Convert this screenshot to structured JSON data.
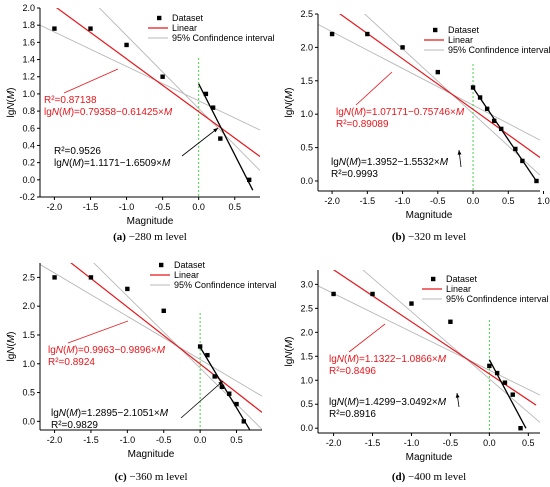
{
  "chart_data": [
    {
      "type": "scatter",
      "caption": "(a) −280 m level",
      "caption_letter": "(a)",
      "caption_text": "−280 m level",
      "xlabel": "Magnitude",
      "ylabel": "lgN(M)",
      "xlim": [
        -2.2,
        0.85
      ],
      "ylim": [
        -0.2,
        2.0
      ],
      "xticks": [
        -2.0,
        -1.5,
        -1.0,
        -0.5,
        0.0,
        0.5
      ],
      "xtick_labels": [
        "-2.0",
        "-1.5",
        "-1.0",
        "-0.5",
        "0.0",
        "0.5"
      ],
      "yticks": [
        -0.2,
        0.0,
        0.2,
        0.4,
        0.6,
        0.8,
        1.0,
        1.2,
        1.4,
        1.6,
        1.8,
        2.0
      ],
      "ytick_labels": [
        "-0.2",
        "0.0",
        "0.2",
        "0.4",
        "0.6",
        "0.8",
        "1.0",
        "1.2",
        "1.4",
        "1.6",
        "1.8",
        "2.0"
      ],
      "series": [
        {
          "name": "Dataset",
          "x": [
            -2.0,
            -1.5,
            -1.0,
            -0.5,
            0.1,
            0.2,
            0.3,
            0.7
          ],
          "y": [
            1.76,
            1.76,
            1.57,
            1.2,
            1.0,
            0.84,
            0.48,
            0.0
          ]
        }
      ],
      "fits": {
        "linear": {
          "intercept": 0.79358,
          "slope": -0.61425,
          "x_range": [
            -2.2,
            0.85
          ],
          "equation": "lgN(M)=0.79358−0.61425×M",
          "r2": "R²=0.87138"
        },
        "segment": {
          "intercept": 1.1171,
          "slope": -1.6509,
          "x_range": [
            0.0,
            0.75
          ],
          "equation": "lgN(M)=1.1171−1.6509×M",
          "r2": "R²=0.9526"
        },
        "confidence_band": {
          "pivot": [
            -0.2,
            1.0
          ],
          "slopes": [
            -0.4,
            -0.85
          ]
        },
        "vertical_guide_x": 0.0
      },
      "legend": {
        "entries": [
          "Dataset",
          "Linear",
          "95% Confindence interval"
        ],
        "placement": "top-right"
      }
    },
    {
      "type": "scatter",
      "caption": "(b) −320 m level",
      "caption_letter": "(b)",
      "caption_text": "−320 m level",
      "xlabel": "Magnitude",
      "ylabel": "lgN(M)",
      "xlim": [
        -2.2,
        0.95
      ],
      "ylim": [
        -0.15,
        2.5
      ],
      "xticks": [
        -2.0,
        -1.5,
        -1.0,
        -0.5,
        0.0,
        0.5,
        1.0
      ],
      "xtick_labels": [
        "-2.0",
        "-1.5",
        "-1.0",
        "-0.5",
        "0.0",
        "0.5",
        "1.0"
      ],
      "yticks": [
        0.0,
        0.5,
        1.0,
        1.5,
        2.0,
        2.5
      ],
      "ytick_labels": [
        "0.0",
        "0.5",
        "1.0",
        "1.5",
        "2.0",
        "2.5"
      ],
      "series": [
        {
          "name": "Dataset",
          "x": [
            -2.0,
            -1.5,
            -1.0,
            -0.5,
            0.0,
            0.1,
            0.2,
            0.3,
            0.4,
            0.6,
            0.7,
            0.9
          ],
          "y": [
            2.2,
            2.2,
            2.0,
            1.63,
            1.4,
            1.25,
            1.08,
            0.9,
            0.78,
            0.48,
            0.3,
            0.0
          ]
        }
      ],
      "fits": {
        "linear": {
          "intercept": 1.07171,
          "slope": -0.75746,
          "x_range": [
            -2.2,
            0.95
          ],
          "equation": "lgN(M)=1.07171−0.75746×M",
          "r2": "R²=0.89089"
        },
        "segment": {
          "intercept": 1.3952,
          "slope": -1.5532,
          "x_range": [
            0.0,
            0.9
          ],
          "equation": "lgN(M)=1.3952−1.5532×M",
          "r2": "R²=0.9993"
        },
        "confidence_band": {
          "pivot": [
            -0.3,
            1.3
          ],
          "slopes": [
            -0.55,
            -0.97
          ]
        },
        "vertical_guide_x": 0.0
      },
      "legend": {
        "entries": [
          "Dataset",
          "Linear",
          "95% Confindence interval"
        ],
        "placement": "top-right"
      }
    },
    {
      "type": "scatter",
      "caption": "(c) −360 m level",
      "caption_letter": "(c)",
      "caption_text": "−360 m level",
      "xlabel": "Magnitude",
      "ylabel": "lgN(M)",
      "xlim": [
        -2.2,
        0.85
      ],
      "ylim": [
        -0.15,
        2.75
      ],
      "xticks": [
        -2.0,
        -1.5,
        -1.0,
        -0.5,
        0.0,
        0.5
      ],
      "xtick_labels": [
        "-2.0",
        "-1.5",
        "-1.0",
        "-0.5",
        "0.0",
        "0.5"
      ],
      "yticks": [
        0.0,
        0.5,
        1.0,
        1.5,
        2.0,
        2.5
      ],
      "ytick_labels": [
        "0.0",
        "0.5",
        "1.0",
        "1.5",
        "2.0",
        "2.5"
      ],
      "series": [
        {
          "name": "Dataset",
          "x": [
            -2.0,
            -1.5,
            -1.0,
            -0.5,
            0.0,
            0.1,
            0.2,
            0.3,
            0.4,
            0.5,
            0.6
          ],
          "y": [
            2.5,
            2.5,
            2.3,
            1.92,
            1.3,
            1.15,
            0.78,
            0.6,
            0.48,
            0.3,
            0.0
          ]
        }
      ],
      "fits": {
        "linear": {
          "intercept": 0.9963,
          "slope": -0.9896,
          "x_range": [
            -2.2,
            0.85
          ],
          "equation": "lgN(M)=0.9963−0.9896×M",
          "r2": "R²=0.8924"
        },
        "segment": {
          "intercept": 1.2895,
          "slope": -2.1051,
          "x_range": [
            0.0,
            0.68
          ],
          "equation": "lgN(M)=1.2895−2.1051×M",
          "r2": "R²=0.9829"
        },
        "confidence_band": {
          "pivot": [
            -0.3,
            1.3
          ],
          "slopes": [
            -0.75,
            -1.25
          ]
        },
        "vertical_guide_x": 0.0
      },
      "legend": {
        "entries": [
          "Dataset",
          "Linear",
          "95% Confindence interval"
        ],
        "placement": "top-right"
      }
    },
    {
      "type": "scatter",
      "caption": "(d) −400 m level",
      "caption_letter": "(d)",
      "caption_text": "−400 m level",
      "xlabel": "Magnitude",
      "ylabel": "lgN(M)",
      "xlim": [
        -2.2,
        0.65
      ],
      "ylim": [
        -0.1,
        3.3
      ],
      "xticks": [
        -2.0,
        -1.5,
        -1.0,
        -0.5,
        0.0,
        0.5
      ],
      "xtick_labels": [
        "-2.0",
        "-1.5",
        "-1.0",
        "-0.5",
        "0.0",
        "0.5"
      ],
      "yticks": [
        0.0,
        0.5,
        1.0,
        1.5,
        2.0,
        2.5,
        3.0
      ],
      "ytick_labels": [
        "0.0",
        "0.5",
        "1.0",
        "1.5",
        "2.0",
        "2.5",
        "3.0"
      ],
      "series": [
        {
          "name": "Dataset",
          "x": [
            -2.0,
            -1.5,
            -1.0,
            -0.5,
            0.0,
            0.1,
            0.2,
            0.3,
            0.4
          ],
          "y": [
            2.8,
            2.8,
            2.6,
            2.22,
            1.3,
            1.15,
            0.95,
            0.7,
            0.0
          ]
        }
      ],
      "fits": {
        "linear": {
          "intercept": 1.1322,
          "slope": -1.0866,
          "x_range": [
            -2.2,
            0.6
          ],
          "equation": "lgN(M)=1.1322−1.0866×M",
          "r2": "R²=0.8496"
        },
        "segment": {
          "intercept": 1.4299,
          "slope": -3.0492,
          "x_range": [
            0.0,
            0.47
          ],
          "equation": "lgN(M)=1.4299−3.0492×M",
          "r2": "R²=0.8916"
        },
        "confidence_band": {
          "pivot": [
            -0.3,
            1.45
          ],
          "slopes": [
            -0.8,
            -1.4
          ]
        },
        "vertical_guide_x": 0.0
      },
      "legend": {
        "entries": [
          "Dataset",
          "Linear",
          "95% Confindence interval"
        ],
        "placement": "top-right"
      }
    }
  ],
  "colors": {
    "axis": "#000000",
    "dataset": "#000000",
    "linear": "#e8161b",
    "segment": "#000000",
    "band": "#b8b8b8",
    "guide": "#33cc33",
    "annotation_red": "#e8161b",
    "annotation_black": "#000000"
  }
}
